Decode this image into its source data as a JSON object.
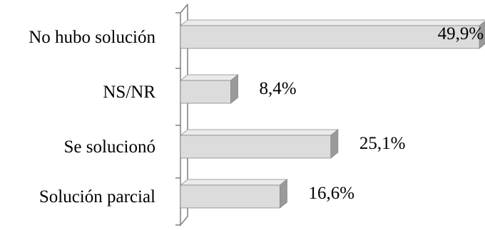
{
  "chart_data": {
    "type": "bar",
    "orientation": "horizontal",
    "title": "",
    "xlabel": "",
    "ylabel": "",
    "categories": [
      "No hubo solución",
      "NS/NR",
      "Se solucionó",
      "Solución parcial"
    ],
    "values": [
      49.9,
      8.4,
      25.1,
      16.6
    ],
    "value_labels": [
      "49,9%",
      "8,4%",
      "25,1%",
      "16,6%"
    ],
    "xlim": [
      0,
      50
    ],
    "grid": false,
    "legend": "none",
    "style": "3d",
    "colors": {
      "bar_face": "#dcdcdc",
      "bar_top": "#ebebeb",
      "bar_side": "#9a9a9a",
      "bar_edge": "#888888",
      "axis": "#7f7f7f"
    }
  }
}
